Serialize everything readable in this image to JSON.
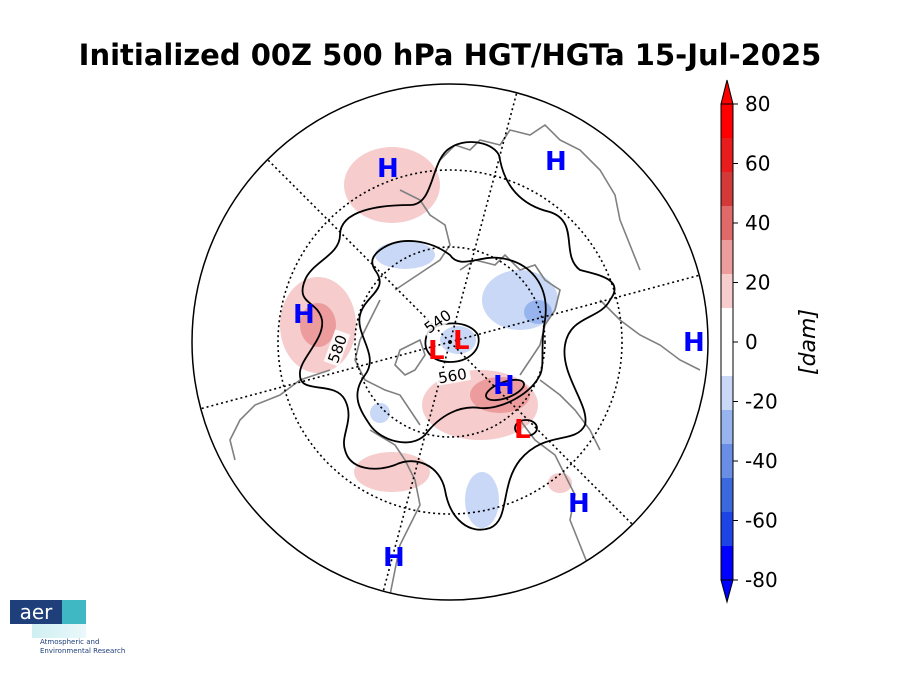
{
  "title": "Initialized 00Z 500 hPa HGT/HGTa 15-Jul-2025",
  "colorbar": {
    "label": "[dam]",
    "ticks": [
      "80",
      "60",
      "40",
      "20",
      "0",
      "-20",
      "-40",
      "-60",
      "-80"
    ],
    "colors_top_to_bottom": [
      "#ff0000",
      "#e81c1c",
      "#d23a3a",
      "#e06a6a",
      "#ec9c9c",
      "#f6cccc",
      "#ffffff",
      "#ffffff",
      "#c8d8f6",
      "#98b4ee",
      "#6a8ee6",
      "#3c68dd",
      "#1f44e6",
      "#0000ff"
    ]
  },
  "contour_labels": [
    "540",
    "560",
    "580"
  ],
  "pressure_centers": [
    {
      "type": "H",
      "color": "#0000ff"
    },
    {
      "type": "H",
      "color": "#0000ff"
    },
    {
      "type": "H",
      "color": "#0000ff"
    },
    {
      "type": "H",
      "color": "#0000ff"
    },
    {
      "type": "H",
      "color": "#0000ff"
    },
    {
      "type": "H",
      "color": "#0000ff"
    },
    {
      "type": "H",
      "color": "#0000ff"
    },
    {
      "type": "L",
      "color": "#ff0000"
    },
    {
      "type": "L",
      "color": "#ff0000"
    },
    {
      "type": "L",
      "color": "#ff0000"
    }
  ],
  "logo": {
    "name": "aer",
    "line1": "Atmospheric and",
    "line2": "Environmental Research"
  }
}
